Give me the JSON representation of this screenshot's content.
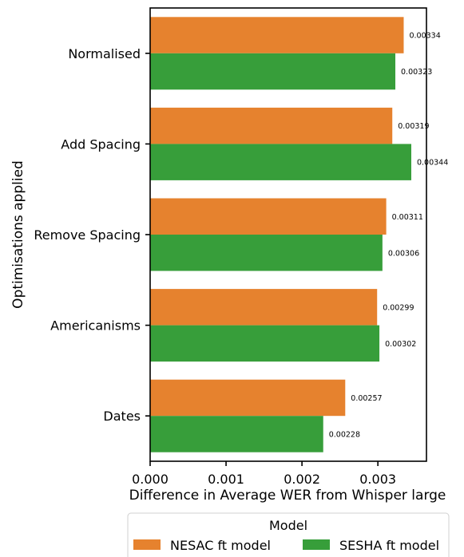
{
  "chart_data": {
    "type": "bar",
    "orientation": "horizontal",
    "categories": [
      "Normalised",
      "Add Spacing",
      "Remove Spacing",
      "Americanisms",
      "Dates"
    ],
    "series": [
      {
        "name": "NESAC ft model",
        "color": "#e6822e",
        "values": [
          0.00334,
          0.00319,
          0.00311,
          0.00299,
          0.00257
        ],
        "labels": [
          "0.00334",
          "0.00319",
          "0.00311",
          "0.00299",
          "0.00257"
        ]
      },
      {
        "name": "SESHA ft model",
        "color": "#379e3a",
        "values": [
          0.00323,
          0.00344,
          0.00306,
          0.00302,
          0.00228
        ],
        "labels": [
          "0.00323",
          "0.00344",
          "0.00306",
          "0.00302",
          "0.00228"
        ]
      }
    ],
    "xlabel": "Difference in Average WER from Whisper large",
    "ylabel": "Optimisations applied",
    "xlim": [
      0,
      0.00364
    ],
    "xticks": [
      0,
      0.001,
      0.002,
      0.003
    ],
    "xtick_labels": [
      "0.000",
      "0.001",
      "0.002",
      "0.003"
    ],
    "legend_title": "Model",
    "legend_position": "bottom",
    "grid": false
  }
}
